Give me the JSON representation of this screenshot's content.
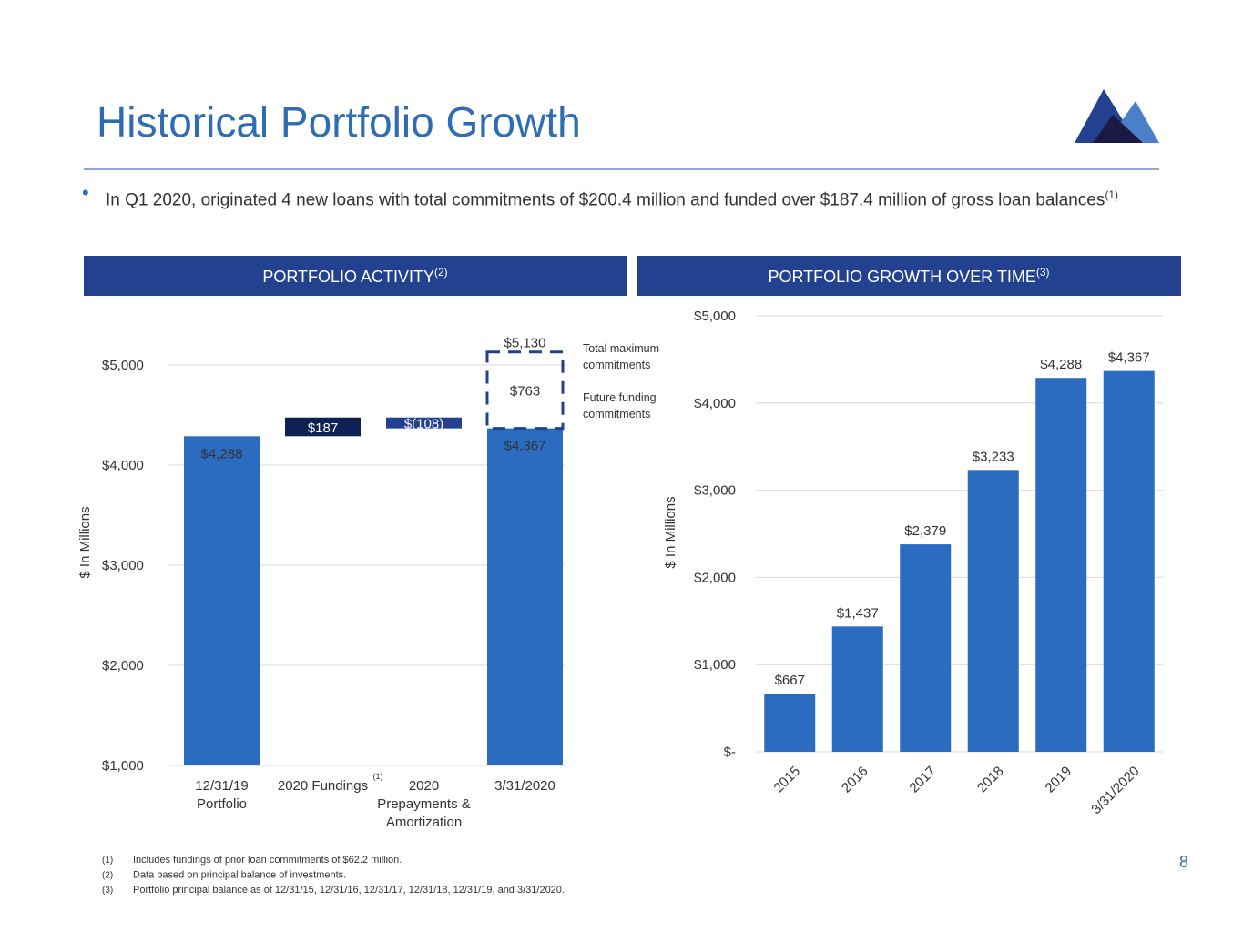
{
  "title": "Historical Portfolio Growth",
  "bullet": {
    "text": "In Q1 2020, originated 4 new loans with total commitments of $200.4 million and funded over $187.4 million of gross loan balances",
    "note": "(1)"
  },
  "footnotes": [
    {
      "marker": "(1)",
      "text": "Includes fundings of prior loan commitments of $62.2 million."
    },
    {
      "marker": "(2)",
      "text": "Data based on principal balance of investments."
    },
    {
      "marker": "(3)",
      "text": "Portfolio principal balance as of 12/31/15, 12/31/16, 12/31/17, 12/31/18, 12/31/19, and 3/31/2020."
    }
  ],
  "page_number": "8",
  "chart_data": [
    {
      "type": "waterfall",
      "title": "PORTFOLIO ACTIVITY",
      "title_note": "(2)",
      "y_label": "$ In Millions",
      "categories": [
        [
          "12/31/19",
          "Portfolio"
        ],
        [
          "2020 Fundings"
        ],
        [
          "2020",
          "Prepayments &",
          "Amortization"
        ],
        [
          "3/31/2020"
        ]
      ],
      "category_note": "(1)",
      "values": [
        4288,
        187,
        -108,
        4367
      ],
      "value_labels": [
        "$4,288",
        "$187",
        "$(108)",
        "$4,367"
      ],
      "measure": [
        "absolute",
        "relative",
        "relative",
        "total"
      ],
      "colors": [
        "#2b6cc0",
        "#0d2152",
        "#22418f",
        "#2b6cc0"
      ],
      "future_commitments": {
        "value": 763,
        "label": "$763",
        "name": [
          "Future funding",
          "commitments"
        ]
      },
      "total_commitments": {
        "value": 5130,
        "label": "$5,130",
        "name": [
          "Total maximum",
          "commitments"
        ]
      },
      "ylim": [
        1000,
        5300
      ],
      "yticks": [
        {
          "value": 1000,
          "label": "$1,000"
        },
        {
          "value": 2000,
          "label": "$2,000"
        },
        {
          "value": 3000,
          "label": "$3,000"
        },
        {
          "value": 4000,
          "label": "$4,000"
        },
        {
          "value": 5000,
          "label": "$5,000"
        }
      ],
      "grid": true
    },
    {
      "type": "bar",
      "title": "PORTFOLIO GROWTH OVER TIME",
      "title_note": "(3)",
      "y_label": "$ In Millions",
      "categories": [
        "2015",
        "2016",
        "2017",
        "2018",
        "2019",
        "3/31/2020"
      ],
      "values": [
        667,
        1437,
        2379,
        3233,
        4288,
        4367
      ],
      "value_labels": [
        "$667",
        "$1,437",
        "$2,379",
        "$3,233",
        "$4,288",
        "$4,367"
      ],
      "color": "#2b6cc0",
      "ylim": [
        0,
        5000
      ],
      "yticks": [
        {
          "value": 0,
          "label": "$-"
        },
        {
          "value": 1000,
          "label": "$1,000"
        },
        {
          "value": 2000,
          "label": "$2,000"
        },
        {
          "value": 3000,
          "label": "$3,000"
        },
        {
          "value": 4000,
          "label": "$4,000"
        },
        {
          "value": 5000,
          "label": "$5,000"
        }
      ],
      "grid": true
    }
  ]
}
